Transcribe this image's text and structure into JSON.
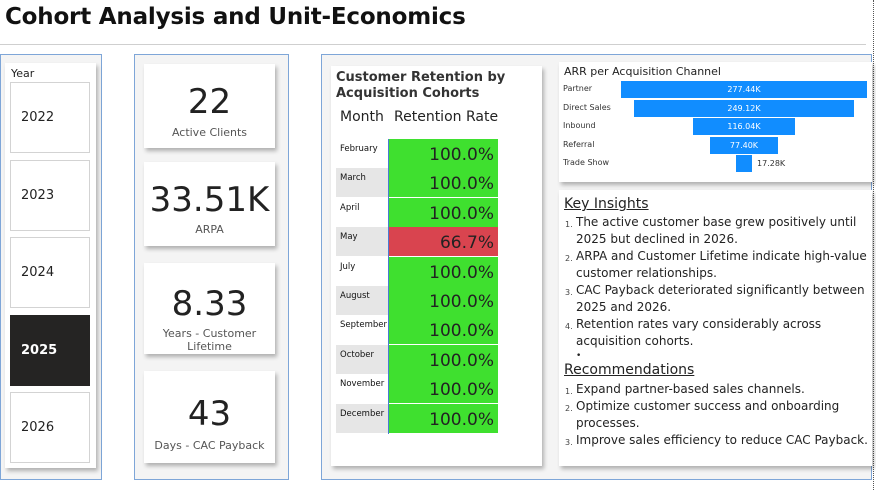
{
  "title": "Cohort Analysis and Unit-Economics",
  "slicer": {
    "title": "Year",
    "years": [
      "2022",
      "2023",
      "2024",
      "2025",
      "2026"
    ],
    "selected": "2025"
  },
  "kpis": [
    {
      "value": "22",
      "label": "Active Clients"
    },
    {
      "value": "33.51K",
      "label": "ARPA"
    },
    {
      "value": "8.33",
      "label": "Years - Customer Lifetime"
    },
    {
      "value": "43",
      "label": "Days - CAC Payback"
    }
  ],
  "retention": {
    "title": "Customer Retention by Acquisition Cohorts",
    "col_month": "Month",
    "col_rate": "Retention Rate",
    "rows": [
      {
        "month": "February",
        "rate": "100.0%"
      },
      {
        "month": "March",
        "rate": "100.0%"
      },
      {
        "month": "April",
        "rate": "100.0%"
      },
      {
        "month": "May",
        "rate": "66.7%"
      },
      {
        "month": "July",
        "rate": "100.0%"
      },
      {
        "month": "August",
        "rate": "100.0%"
      },
      {
        "month": "September",
        "rate": "100.0%"
      },
      {
        "month": "October",
        "rate": "100.0%"
      },
      {
        "month": "November",
        "rate": "100.0%"
      },
      {
        "month": "December",
        "rate": "100.0%"
      }
    ],
    "colors": {
      "high": "#3fe02f",
      "low": "#d9444f"
    }
  },
  "arr": {
    "title": "ARR per Acquisition Channel",
    "bar_color": "#118dff",
    "channels": [
      {
        "name": "Partner",
        "value": 277.44,
        "label": "277.44K"
      },
      {
        "name": "Direct Sales",
        "value": 249.12,
        "label": "249.12K"
      },
      {
        "name": "Inbound",
        "value": 116.04,
        "label": "116.04K"
      },
      {
        "name": "Referral",
        "value": 77.4,
        "label": "77.40K"
      },
      {
        "name": "Trade Show",
        "value": 17.28,
        "label": "17.28K"
      }
    ]
  },
  "insights": {
    "title": "Key Insights",
    "items": [
      "The active customer base grew positively until 2025 but declined in 2026.",
      "ARPA and Customer Lifetime indicate high-value customer relationships.",
      "CAC Payback deteriorated significantly between 2025 and 2026.",
      "Retention rates vary considerably across acquisition cohorts."
    ],
    "bullet": "•"
  },
  "recommendations": {
    "title": "Recommendations",
    "items": [
      "Expand partner-based sales channels.",
      "Optimize customer success and onboarding processes.",
      "Improve sales efficiency to reduce CAC Payback."
    ]
  }
}
